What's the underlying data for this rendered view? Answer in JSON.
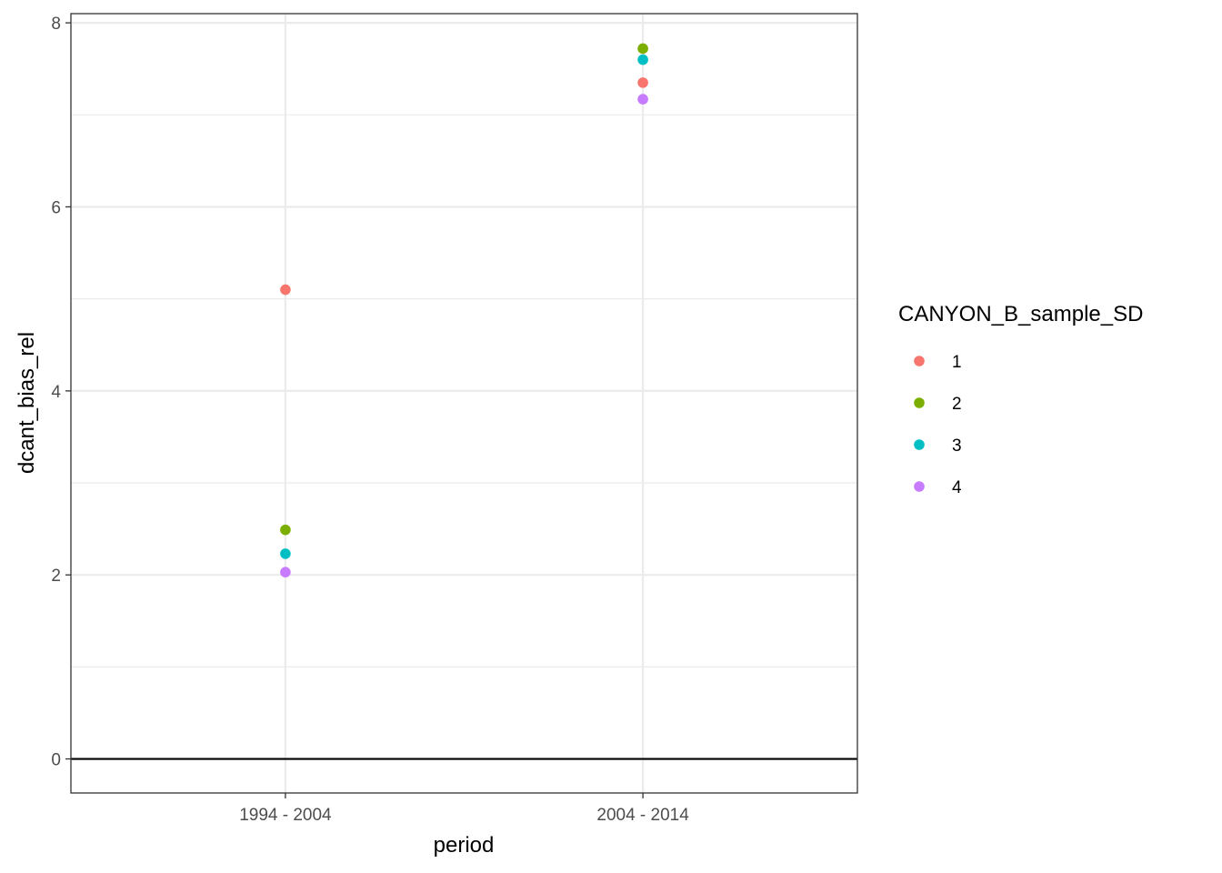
{
  "chart_data": {
    "type": "scatter",
    "title": "",
    "xlabel": "period",
    "ylabel": "dcant_bias_rel",
    "categories": [
      "1994 - 2004",
      "2004 - 2014"
    ],
    "ylim": [
      -0.37,
      8.1
    ],
    "yticks": [
      0,
      2,
      4,
      6,
      8
    ],
    "hline": 0,
    "grid": true,
    "legend": {
      "title": "CANYON_B_sample_SD",
      "position": "right"
    },
    "series": [
      {
        "name": "1",
        "color": "#F8766D",
        "values": [
          5.1,
          7.35
        ]
      },
      {
        "name": "2",
        "color": "#7CAE00",
        "values": [
          2.49,
          7.72
        ]
      },
      {
        "name": "3",
        "color": "#00BFC4",
        "values": [
          2.23,
          7.6
        ]
      },
      {
        "name": "4",
        "color": "#C77CFF",
        "values": [
          2.03,
          7.17
        ]
      }
    ]
  }
}
